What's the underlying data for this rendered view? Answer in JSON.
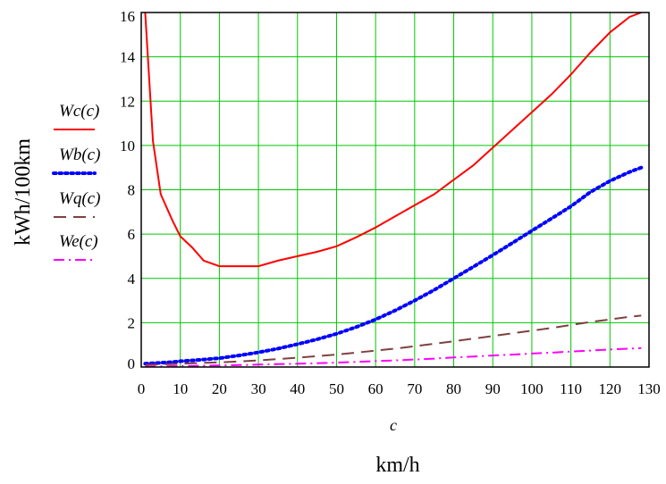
{
  "chart_data": {
    "type": "line",
    "title": "",
    "ylabel": "kWh/100km",
    "xlabel": "c",
    "x_unit": "km/h",
    "xlim": [
      0,
      130
    ],
    "ylim": [
      0,
      16
    ],
    "x_ticks": [
      "0",
      "10",
      "20",
      "30",
      "40",
      "50",
      "60",
      "70",
      "80",
      "90",
      "100",
      "110",
      "120",
      "130"
    ],
    "y_ticks": [
      "0",
      "2",
      "4",
      "6",
      "8",
      "10",
      "12",
      "14",
      "16"
    ],
    "grid": true,
    "grid_color": "#00c800",
    "legend_position": "left",
    "x": [
      1,
      3,
      5,
      8,
      10,
      13,
      16,
      20,
      25,
      30,
      35,
      40,
      45,
      50,
      55,
      60,
      65,
      70,
      75,
      80,
      85,
      90,
      95,
      100,
      105,
      110,
      115,
      120,
      125,
      128
    ],
    "series": [
      {
        "name": "Wc(c)",
        "color": "#ff0000",
        "style": "solid",
        "values": [
          16,
          10.2,
          7.8,
          6.6,
          5.9,
          5.4,
          4.8,
          4.55,
          4.55,
          4.55,
          4.8,
          5.0,
          5.2,
          5.45,
          5.85,
          6.3,
          6.8,
          7.3,
          7.8,
          8.45,
          9.1,
          9.9,
          10.7,
          11.5,
          12.3,
          13.2,
          14.2,
          15.1,
          15.8,
          16
        ]
      },
      {
        "name": "Wb(c)",
        "color": "#0000ff",
        "style": "dotted",
        "values": [
          0.15,
          0.17,
          0.19,
          0.22,
          0.26,
          0.3,
          0.34,
          0.4,
          0.52,
          0.66,
          0.83,
          1.03,
          1.25,
          1.5,
          1.8,
          2.15,
          2.55,
          3.0,
          3.48,
          4.0,
          4.52,
          5.05,
          5.6,
          6.15,
          6.7,
          7.25,
          7.9,
          8.4,
          8.8,
          9.0
        ]
      },
      {
        "name": "Wq(c)",
        "color": "#804040",
        "style": "dashed",
        "values": [
          0.1,
          0.11,
          0.12,
          0.13,
          0.15,
          0.17,
          0.19,
          0.21,
          0.25,
          0.3,
          0.36,
          0.42,
          0.49,
          0.56,
          0.65,
          0.74,
          0.83,
          0.94,
          1.05,
          1.16,
          1.28,
          1.4,
          1.52,
          1.64,
          1.76,
          1.9,
          2.03,
          2.15,
          2.27,
          2.32
        ]
      },
      {
        "name": "We(c)",
        "color": "#ff00ff",
        "style": "dashdot",
        "values": [
          0.02,
          0.03,
          0.03,
          0.04,
          0.05,
          0.05,
          0.06,
          0.07,
          0.09,
          0.11,
          0.13,
          0.15,
          0.17,
          0.2,
          0.23,
          0.27,
          0.3,
          0.34,
          0.38,
          0.43,
          0.47,
          0.52,
          0.56,
          0.61,
          0.65,
          0.7,
          0.74,
          0.79,
          0.83,
          0.85
        ]
      }
    ]
  }
}
